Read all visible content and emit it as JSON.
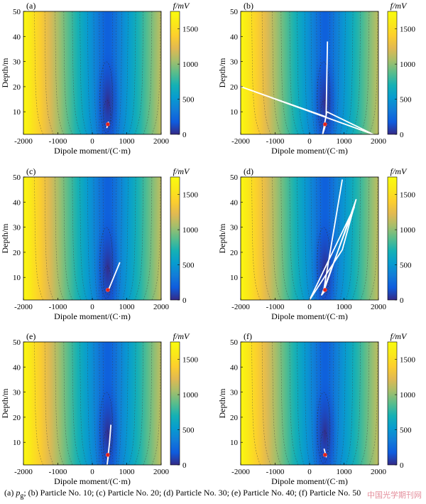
{
  "chart_data": [
    {
      "id": "a",
      "type": "heatmap",
      "panel_label": "(a)",
      "xlabel": "Dipole moment/(C·m)",
      "ylabel": "Depth/m",
      "x_ticks": [
        -2000,
        -1000,
        0,
        1000,
        2000
      ],
      "y_ticks": [
        10,
        20,
        30,
        40,
        50
      ],
      "xlim": [
        -2000,
        2000
      ],
      "ylim": [
        1,
        50
      ],
      "colorbar": {
        "title": "f/mV",
        "ticks": [
          0,
          500,
          1000,
          1500
        ],
        "range": [
          0,
          1750
        ]
      },
      "minimum": {
        "x": 450,
        "y": 5
      },
      "trajectory": [
        [
          420,
          3.5
        ],
        [
          440,
          4.5
        ],
        [
          460,
          5.5
        ],
        [
          470,
          6
        ]
      ]
    },
    {
      "id": "b",
      "type": "heatmap",
      "panel_label": "(b)",
      "xlabel": "Dipole moment/(C·m)",
      "ylabel": "Depth/m",
      "x_ticks": [
        -2000,
        -1000,
        0,
        1000,
        2000
      ],
      "y_ticks": [
        10,
        20,
        30,
        40,
        50
      ],
      "xlim": [
        -2000,
        2000
      ],
      "ylim": [
        1,
        50
      ],
      "colorbar": {
        "title": "f/mV",
        "ticks": [
          0,
          500,
          1000,
          1500
        ],
        "range": [
          0,
          1750
        ]
      },
      "minimum": {
        "x": 450,
        "y": 5
      },
      "trajectory": [
        [
          520,
          38
        ],
        [
          480,
          8
        ],
        [
          -2000,
          20
        ],
        [
          1850,
          1
        ],
        [
          500,
          10
        ],
        [
          380,
          1
        ],
        [
          470,
          5
        ]
      ]
    },
    {
      "id": "c",
      "type": "heatmap",
      "panel_label": "(c)",
      "xlabel": "Dipole moment/(C·m)",
      "ylabel": "Depth/m",
      "x_ticks": [
        -2000,
        -1000,
        0,
        1000,
        2000
      ],
      "y_ticks": [
        10,
        20,
        30,
        40,
        50
      ],
      "xlim": [
        -2000,
        2000
      ],
      "ylim": [
        1,
        50
      ],
      "colorbar": {
        "title": "f/mV",
        "ticks": [
          0,
          500,
          1000,
          1500
        ],
        "range": [
          0,
          1750
        ]
      },
      "minimum": {
        "x": 450,
        "y": 5
      },
      "trajectory": [
        [
          800,
          16
        ],
        [
          620,
          10
        ],
        [
          470,
          5
        ]
      ]
    },
    {
      "id": "d",
      "type": "heatmap",
      "panel_label": "(d)",
      "xlabel": "Dipole moment/(C·m)",
      "ylabel": "Depth/m",
      "x_ticks": [
        -2000,
        -1000,
        0,
        1000,
        2000
      ],
      "y_ticks": [
        10,
        20,
        30,
        40,
        50
      ],
      "xlim": [
        -2000,
        2000
      ],
      "ylim": [
        1,
        50
      ],
      "colorbar": {
        "title": "f/mV",
        "ticks": [
          0,
          500,
          1000,
          1500
        ],
        "range": [
          0,
          1750
        ]
      },
      "minimum": {
        "x": 450,
        "y": 5
      },
      "trajectory": [
        [
          950,
          49
        ],
        [
          400,
          4
        ],
        [
          1350,
          41
        ],
        [
          950,
          21
        ],
        [
          0,
          1
        ],
        [
          1300,
          38
        ],
        [
          350,
          3
        ],
        [
          470,
          5
        ]
      ]
    },
    {
      "id": "e",
      "type": "heatmap",
      "panel_label": "(e)",
      "xlabel": "Dipole moment/(C·m)",
      "ylabel": "Depth/m",
      "x_ticks": [
        -2000,
        -1000,
        0,
        1000,
        2000
      ],
      "y_ticks": [
        10,
        20,
        30,
        40,
        50
      ],
      "xlim": [
        -2000,
        2000
      ],
      "ylim": [
        1,
        50
      ],
      "colorbar": {
        "title": "f/mV",
        "ticks": [
          0,
          500,
          1000,
          1500
        ],
        "range": [
          0,
          1750
        ]
      },
      "minimum": {
        "x": 450,
        "y": 5
      },
      "trajectory": [
        [
          540,
          17
        ],
        [
          500,
          10
        ],
        [
          430,
          1
        ],
        [
          470,
          5
        ]
      ]
    },
    {
      "id": "f",
      "type": "heatmap",
      "panel_label": "(f)",
      "xlabel": "Dipole moment/(C·m)",
      "ylabel": "Depth/m",
      "x_ticks": [
        -2000,
        -1000,
        0,
        1000,
        2000
      ],
      "y_ticks": [
        10,
        20,
        30,
        40,
        50
      ],
      "xlim": [
        -2000,
        2000
      ],
      "ylim": [
        1,
        50
      ],
      "colorbar": {
        "title": "f/mV",
        "ticks": [
          0,
          500,
          1000,
          1500
        ],
        "range": [
          0,
          1750
        ]
      },
      "minimum": {
        "x": 450,
        "y": 5
      },
      "trajectory": [
        [
          420,
          7.5
        ],
        [
          450,
          6
        ],
        [
          490,
          4
        ]
      ]
    }
  ],
  "caption": {
    "prefix": "(a) ",
    "symbol": "p",
    "subscript": "g",
    "rest": "; (b) Particle No. 10; (c) Particle No. 20; (d) Particle No. 30; (e) Particle No. 40; (f) Particle No. 50"
  },
  "watermark": "中国光学期刊网"
}
